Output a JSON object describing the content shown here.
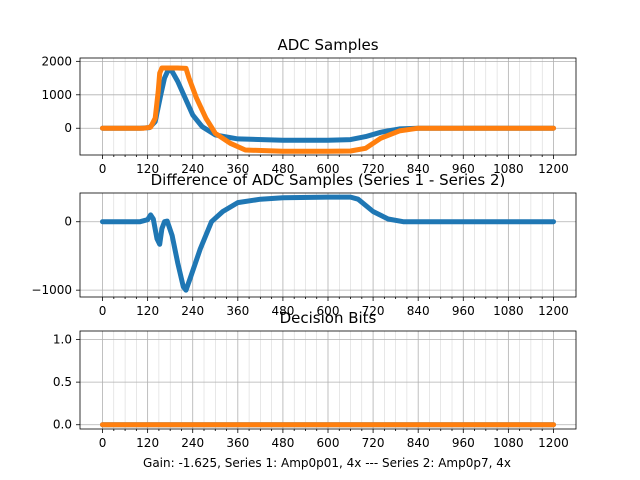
{
  "figure_caption": "Gain: -1.625, Series 1: Amp0p01, 4x --- Series 2: Amp0p7, 4x",
  "colors": {
    "series1": "#1f77b4",
    "series2": "#ff7f0e"
  },
  "chart_data": [
    {
      "type": "line",
      "title": "ADC Samples",
      "xlim": [
        -60,
        1260
      ],
      "ylim": [
        -800,
        2100
      ],
      "xticks": [
        0,
        120,
        240,
        360,
        480,
        600,
        720,
        840,
        960,
        1080,
        1200
      ],
      "xtick_labels": [
        "0",
        "120",
        "240",
        "360",
        "480",
        "600",
        "720",
        "840",
        "960",
        "1080",
        "1200"
      ],
      "yticks": [
        0,
        1000,
        2000
      ],
      "ytick_labels": [
        "0",
        "1000",
        "2000"
      ],
      "grid": true,
      "series": [
        {
          "name": "Series 1",
          "points": [
            [
              0,
              0
            ],
            [
              100,
              0
            ],
            [
              125,
              20
            ],
            [
              140,
              200
            ],
            [
              155,
              1000
            ],
            [
              165,
              1500
            ],
            [
              175,
              1750
            ],
            [
              185,
              1700
            ],
            [
              200,
              1400
            ],
            [
              220,
              900
            ],
            [
              240,
              400
            ],
            [
              265,
              50
            ],
            [
              300,
              -200
            ],
            [
              360,
              -320
            ],
            [
              480,
              -360
            ],
            [
              600,
              -360
            ],
            [
              660,
              -340
            ],
            [
              700,
              -250
            ],
            [
              740,
              -120
            ],
            [
              790,
              -20
            ],
            [
              840,
              0
            ],
            [
              960,
              0
            ],
            [
              1080,
              0
            ],
            [
              1200,
              0
            ]
          ]
        },
        {
          "name": "Series 2",
          "points": [
            [
              0,
              0
            ],
            [
              110,
              0
            ],
            [
              128,
              30
            ],
            [
              140,
              300
            ],
            [
              148,
              1100
            ],
            [
              152,
              1650
            ],
            [
              158,
              1800
            ],
            [
              200,
              1800
            ],
            [
              222,
              1790
            ],
            [
              230,
              1500
            ],
            [
              250,
              900
            ],
            [
              275,
              300
            ],
            [
              300,
              -150
            ],
            [
              340,
              -450
            ],
            [
              380,
              -650
            ],
            [
              480,
              -690
            ],
            [
              600,
              -690
            ],
            [
              660,
              -680
            ],
            [
              700,
              -600
            ],
            [
              740,
              -300
            ],
            [
              790,
              -80
            ],
            [
              840,
              0
            ],
            [
              960,
              0
            ],
            [
              1080,
              0
            ],
            [
              1200,
              0
            ]
          ]
        }
      ]
    },
    {
      "type": "line",
      "title": "Difference of ADC Samples (Series 1 - Series 2)",
      "xlim": [
        -60,
        1260
      ],
      "ylim": [
        -1100,
        420
      ],
      "xticks": [
        0,
        120,
        240,
        360,
        480,
        600,
        720,
        840,
        960,
        1080,
        1200
      ],
      "xtick_labels": [
        "0",
        "120",
        "240",
        "360",
        "480",
        "600",
        "720",
        "840",
        "960",
        "1080",
        "1200"
      ],
      "yticks": [
        -1000,
        0
      ],
      "ytick_labels": [
        "−1000",
        "0"
      ],
      "grid": true,
      "series": [
        {
          "name": "Series 1 - Series 2",
          "points": [
            [
              0,
              0
            ],
            [
              100,
              0
            ],
            [
              120,
              30
            ],
            [
              128,
              100
            ],
            [
              135,
              40
            ],
            [
              145,
              -250
            ],
            [
              152,
              -330
            ],
            [
              158,
              -100
            ],
            [
              165,
              0
            ],
            [
              172,
              10
            ],
            [
              185,
              -200
            ],
            [
              200,
              -600
            ],
            [
              215,
              -950
            ],
            [
              222,
              -1000
            ],
            [
              235,
              -800
            ],
            [
              260,
              -400
            ],
            [
              290,
              0
            ],
            [
              320,
              150
            ],
            [
              360,
              280
            ],
            [
              420,
              330
            ],
            [
              480,
              350
            ],
            [
              600,
              360
            ],
            [
              660,
              360
            ],
            [
              680,
              330
            ],
            [
              720,
              150
            ],
            [
              760,
              40
            ],
            [
              800,
              0
            ],
            [
              840,
              0
            ],
            [
              960,
              0
            ],
            [
              1080,
              0
            ],
            [
              1200,
              0
            ]
          ]
        }
      ]
    },
    {
      "type": "line",
      "title": "Decision Bits",
      "xlim": [
        -60,
        1260
      ],
      "ylim": [
        -0.05,
        1.1
      ],
      "xticks": [
        0,
        120,
        240,
        360,
        480,
        600,
        720,
        840,
        960,
        1080,
        1200
      ],
      "xtick_labels": [
        "0",
        "120",
        "240",
        "360",
        "480",
        "600",
        "720",
        "840",
        "960",
        "1080",
        "1200"
      ],
      "yticks": [
        0.0,
        0.5,
        1.0
      ],
      "ytick_labels": [
        "0.0",
        "0.5",
        "1.0"
      ],
      "grid": true,
      "series": [
        {
          "name": "Series 1",
          "points": [
            [
              0,
              0
            ],
            [
              1200,
              0
            ]
          ]
        },
        {
          "name": "Series 2",
          "points": [
            [
              0,
              0
            ],
            [
              1200,
              0
            ]
          ]
        }
      ]
    }
  ]
}
